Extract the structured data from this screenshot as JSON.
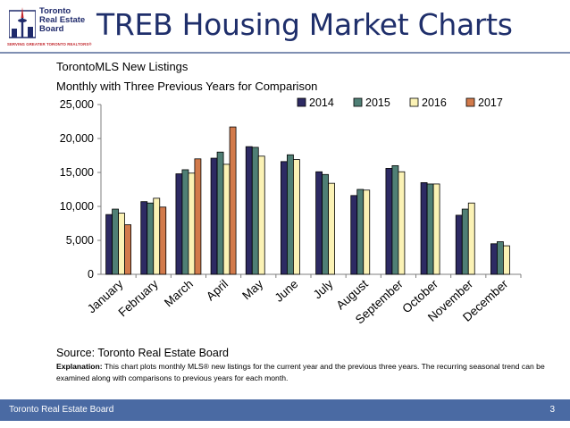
{
  "header": {
    "title": "TREB Housing Market Charts",
    "logo": {
      "line1": "Toronto",
      "line2": "Real Estate",
      "line3": "Board",
      "tagline": "SERVING GREATER TORONTO REALTORS®"
    }
  },
  "chart_data": {
    "type": "bar",
    "title": "TorontoMLS New Listings",
    "subtitle": "Monthly with Three Previous Years for Comparison",
    "xlabel": "",
    "ylabel": "",
    "categories": [
      "January",
      "February",
      "March",
      "April",
      "May",
      "June",
      "July",
      "August",
      "September",
      "October",
      "November",
      "December"
    ],
    "yticks": [
      "0",
      "5,000",
      "10,000",
      "15,000",
      "20,000",
      "25,000"
    ],
    "ylim": [
      0,
      25000
    ],
    "grid": false,
    "legend": "top-right",
    "series": [
      {
        "name": "2014",
        "color": "#2d2a63",
        "values": [
          8800,
          10700,
          14800,
          17100,
          18800,
          16600,
          15100,
          11600,
          15600,
          13500,
          8700,
          4500
        ]
      },
      {
        "name": "2015",
        "color": "#4f7f75",
        "values": [
          9600,
          10500,
          15400,
          18000,
          18700,
          17600,
          14700,
          12500,
          16000,
          13300,
          9600,
          4800
        ]
      },
      {
        "name": "2016",
        "color": "#fbf2b5",
        "values": [
          9000,
          11200,
          14900,
          16200,
          17400,
          16900,
          13400,
          12400,
          15100,
          13300,
          10500,
          4200
        ]
      },
      {
        "name": "2017",
        "color": "#d27a4b",
        "values": [
          7300,
          9900,
          17000,
          21700,
          null,
          null,
          null,
          null,
          null,
          null,
          null,
          null
        ]
      }
    ]
  },
  "source": "Source: Toronto Real Estate Board",
  "explanation": {
    "label": "Explanation:",
    "text": " This chart plots monthly MLS® new listings for the current year and the previous three years. The recurring seasonal trend can be examined along with comparisons to previous years for each month."
  },
  "footer": {
    "org": "Toronto Real Estate Board",
    "page": "3"
  }
}
